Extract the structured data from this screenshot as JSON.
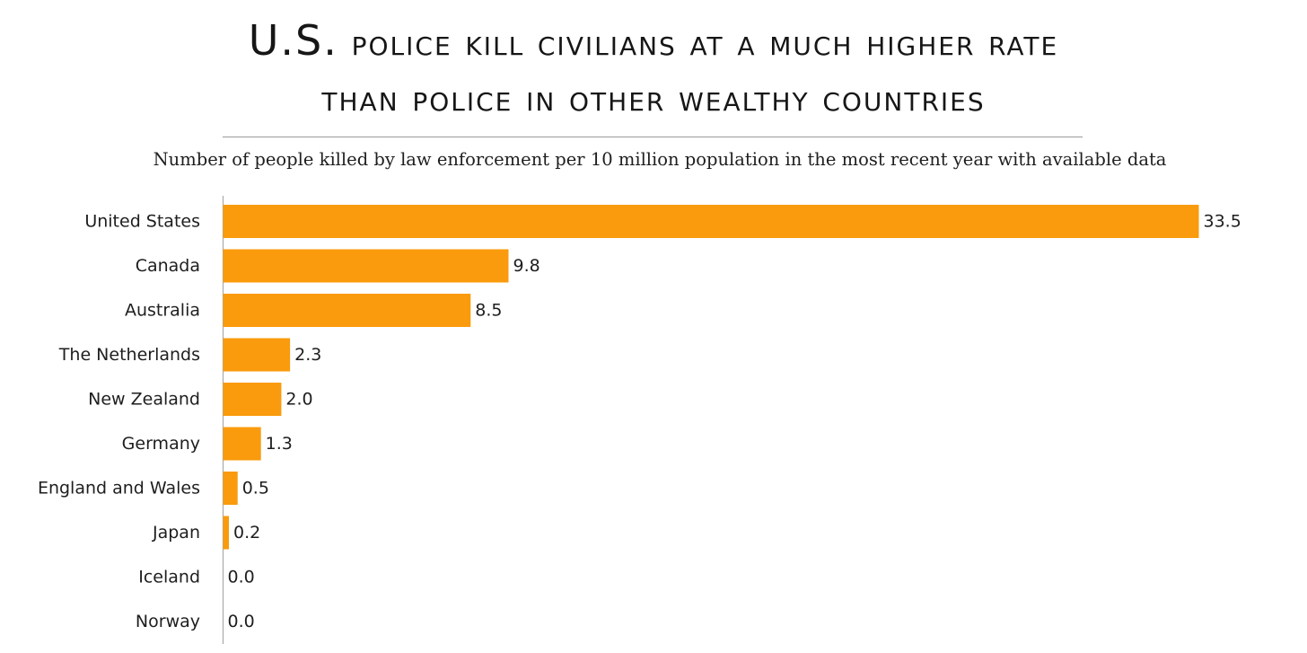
{
  "title_line1_prefix": "U.S.",
  "title_line1_rest": "police kill civilians at a much higher rate",
  "title_line2": "than police in other wealthy countries",
  "subtitle": "Number of people killed by law enforcement per 10 million population in the most recent year with available data",
  "colors": {
    "bar": "#f99b0c",
    "axis": "#aaaaaa",
    "divider": "#9a9a9a"
  },
  "chart_data": {
    "type": "bar",
    "orientation": "horizontal",
    "title": "U.S. police kill civilians at a much higher rate than police in other wealthy countries",
    "subtitle": "Number of people killed by law enforcement per 10 million population in the most recent year with available data",
    "categories": [
      "United States",
      "Canada",
      "Australia",
      "The Netherlands",
      "New Zealand",
      "Germany",
      "England and Wales",
      "Japan",
      "Iceland",
      "Norway"
    ],
    "values": [
      33.5,
      9.8,
      8.5,
      2.3,
      2.0,
      1.3,
      0.5,
      0.2,
      0.0,
      0.0
    ],
    "value_labels": [
      "33.5",
      "9.8",
      "8.5",
      "2.3",
      "2.0",
      "1.3",
      "0.5",
      "0.2",
      "0.0",
      "0.0"
    ],
    "xlim": [
      0,
      33.5
    ],
    "grid": false,
    "xlabel": "",
    "ylabel": ""
  }
}
